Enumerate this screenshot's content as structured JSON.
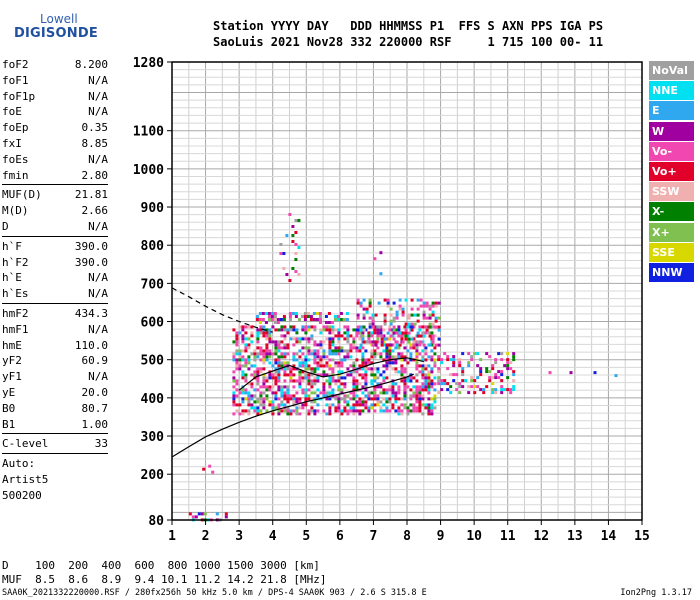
{
  "logo": {
    "line1": "Lowell",
    "line2": "DIGISONDE"
  },
  "header": {
    "labels": "Station YYYY DAY   DDD HHMMSS P1  FFS S AXN PPS IGA PS",
    "values": "SaoLuis 2021 Nov28 332 220000 RSF     1 715 100 00- 11"
  },
  "params": [
    {
      "k": "foF2",
      "v": "8.200"
    },
    {
      "k": "foF1",
      "v": "N/A"
    },
    {
      "k": "foF1p",
      "v": "N/A"
    },
    {
      "k": "foE",
      "v": "N/A"
    },
    {
      "k": "foEp",
      "v": "0.35"
    },
    {
      "k": "fxI",
      "v": "8.85"
    },
    {
      "k": "foEs",
      "v": "N/A"
    },
    {
      "k": "fmin",
      "v": "2.80"
    },
    {
      "sep": true
    },
    {
      "k": "MUF(D)",
      "v": "21.81"
    },
    {
      "k": "M(D)",
      "v": "2.66"
    },
    {
      "k": "D",
      "v": "N/A"
    },
    {
      "sep": true
    },
    {
      "k": "h`F",
      "v": "390.0"
    },
    {
      "k": "h`F2",
      "v": "390.0"
    },
    {
      "k": "h`E",
      "v": "N/A"
    },
    {
      "k": "h`Es",
      "v": "N/A"
    },
    {
      "sep": true
    },
    {
      "k": "hmF2",
      "v": "434.3"
    },
    {
      "k": "hmF1",
      "v": "N/A"
    },
    {
      "k": "hmE",
      "v": "110.0"
    },
    {
      "k": "yF2",
      "v": "60.9"
    },
    {
      "k": "yF1",
      "v": "N/A"
    },
    {
      "k": "yE",
      "v": "20.0"
    },
    {
      "k": "B0",
      "v": "80.7"
    },
    {
      "k": "B1",
      "v": "1.00"
    },
    {
      "sep": true
    },
    {
      "k": "C-level",
      "v": "33"
    },
    {
      "sep": true
    },
    {
      "text": "Auto:"
    },
    {
      "text": "Artist5"
    },
    {
      "text": "500200"
    }
  ],
  "legend": [
    {
      "label": "NoVal",
      "color": "#a0a0a0"
    },
    {
      "label": "NNE",
      "color": "#00e0f0"
    },
    {
      "label": "E",
      "color": "#30a8f0"
    },
    {
      "label": "W",
      "color": "#a000a0"
    },
    {
      "label": "Vo-",
      "color": "#f048b0"
    },
    {
      "label": "Vo+",
      "color": "#e0002a"
    },
    {
      "label": "SSW",
      "color": "#f0b0b0"
    },
    {
      "label": "X-",
      "color": "#008000"
    },
    {
      "label": "X+",
      "color": "#80c050"
    },
    {
      "label": "SSE",
      "color": "#d8d800"
    },
    {
      "label": "NNW",
      "color": "#1020e0"
    }
  ],
  "muf_table": {
    "d_row": "D    100  200  400  600  800 1000 1500 3000 [km]",
    "muf_row": "MUF  8.5  8.6  8.9  9.4 10.1 11.2 14.2 21.8 [MHz]"
  },
  "footer": {
    "left": "SAA0K_2021332220000.RSF / 280fx256h 50 kHz 5.0 km / DPS-4 SAA0K 903 / 2.6 S 315.8 E",
    "right": "Ion2Png 1.3.17"
  },
  "chart_data": {
    "type": "scatter",
    "title": "",
    "xlabel": "",
    "ylabel": "",
    "x_ticks": [
      "1",
      "2",
      "3",
      "4",
      "5",
      "6",
      "7",
      "8",
      "9",
      "10",
      "11",
      "12",
      "13",
      "14",
      "15"
    ],
    "y_ticks": [
      80,
      200,
      300,
      400,
      500,
      600,
      700,
      800,
      900,
      1000,
      1100,
      1280
    ],
    "y_tick_labels": [
      "80",
      "200",
      "300",
      "400",
      "500",
      "600",
      "700",
      "800",
      "900",
      "1000",
      "1100",
      "1280"
    ],
    "xlim": [
      1,
      15
    ],
    "ylim": [
      80,
      1280
    ],
    "grid": true,
    "legend_position": "right",
    "profile_solid": [
      [
        1.0,
        245
      ],
      [
        1.5,
        272
      ],
      [
        2.0,
        298
      ],
      [
        2.5,
        318
      ],
      [
        3.0,
        336
      ],
      [
        3.5,
        352
      ],
      [
        4.0,
        366
      ],
      [
        4.5,
        378
      ],
      [
        5.0,
        390
      ],
      [
        5.5,
        400
      ],
      [
        6.0,
        410
      ],
      [
        6.5,
        420
      ],
      [
        7.0,
        430
      ],
      [
        7.5,
        442
      ],
      [
        8.0,
        455
      ],
      [
        8.2,
        462
      ]
    ],
    "profile_dashed": [
      [
        1.0,
        688
      ],
      [
        1.5,
        665
      ],
      [
        2.0,
        640
      ],
      [
        2.5,
        618
      ],
      [
        3.0,
        600
      ],
      [
        3.5,
        585
      ],
      [
        4.0,
        572
      ]
    ],
    "trace_points": [
      [
        3.0,
        420
      ],
      [
        3.5,
        455
      ],
      [
        4.0,
        470
      ],
      [
        4.5,
        485
      ],
      [
        5.0,
        468
      ],
      [
        5.5,
        455
      ],
      [
        6.0,
        462
      ],
      [
        6.5,
        475
      ],
      [
        7.0,
        490
      ],
      [
        7.5,
        500
      ],
      [
        8.0,
        505
      ],
      [
        8.5,
        495
      ]
    ],
    "clusters": [
      {
        "x": [
          2.8,
          8.8
        ],
        "y": [
          360,
          590
        ],
        "density": 0.55
      },
      {
        "x": [
          3.5,
          6.2
        ],
        "y": [
          600,
          625
        ],
        "density": 0.5
      },
      {
        "x": [
          8.9,
          11.2
        ],
        "y": [
          415,
          520
        ],
        "density": 0.3
      },
      {
        "x": [
          6.5,
          9.0
        ],
        "y": [
          540,
          660
        ],
        "density": 0.3
      },
      {
        "x": [
          1.5,
          2.7
        ],
        "y": [
          80,
          100
        ],
        "density": 0.35
      },
      {
        "x": [
          1.9,
          2.2
        ],
        "y": [
          205,
          225
        ],
        "density": 0.3
      },
      {
        "x": [
          4.2,
          4.8
        ],
        "y": [
          700,
          900
        ],
        "density": 0.08
      },
      {
        "x": [
          7.0,
          7.2
        ],
        "y": [
          720,
          800
        ],
        "density": 0.08
      },
      {
        "x": [
          11.5,
          14.2
        ],
        "y": [
          455,
          470
        ],
        "density": 0.05
      }
    ]
  }
}
